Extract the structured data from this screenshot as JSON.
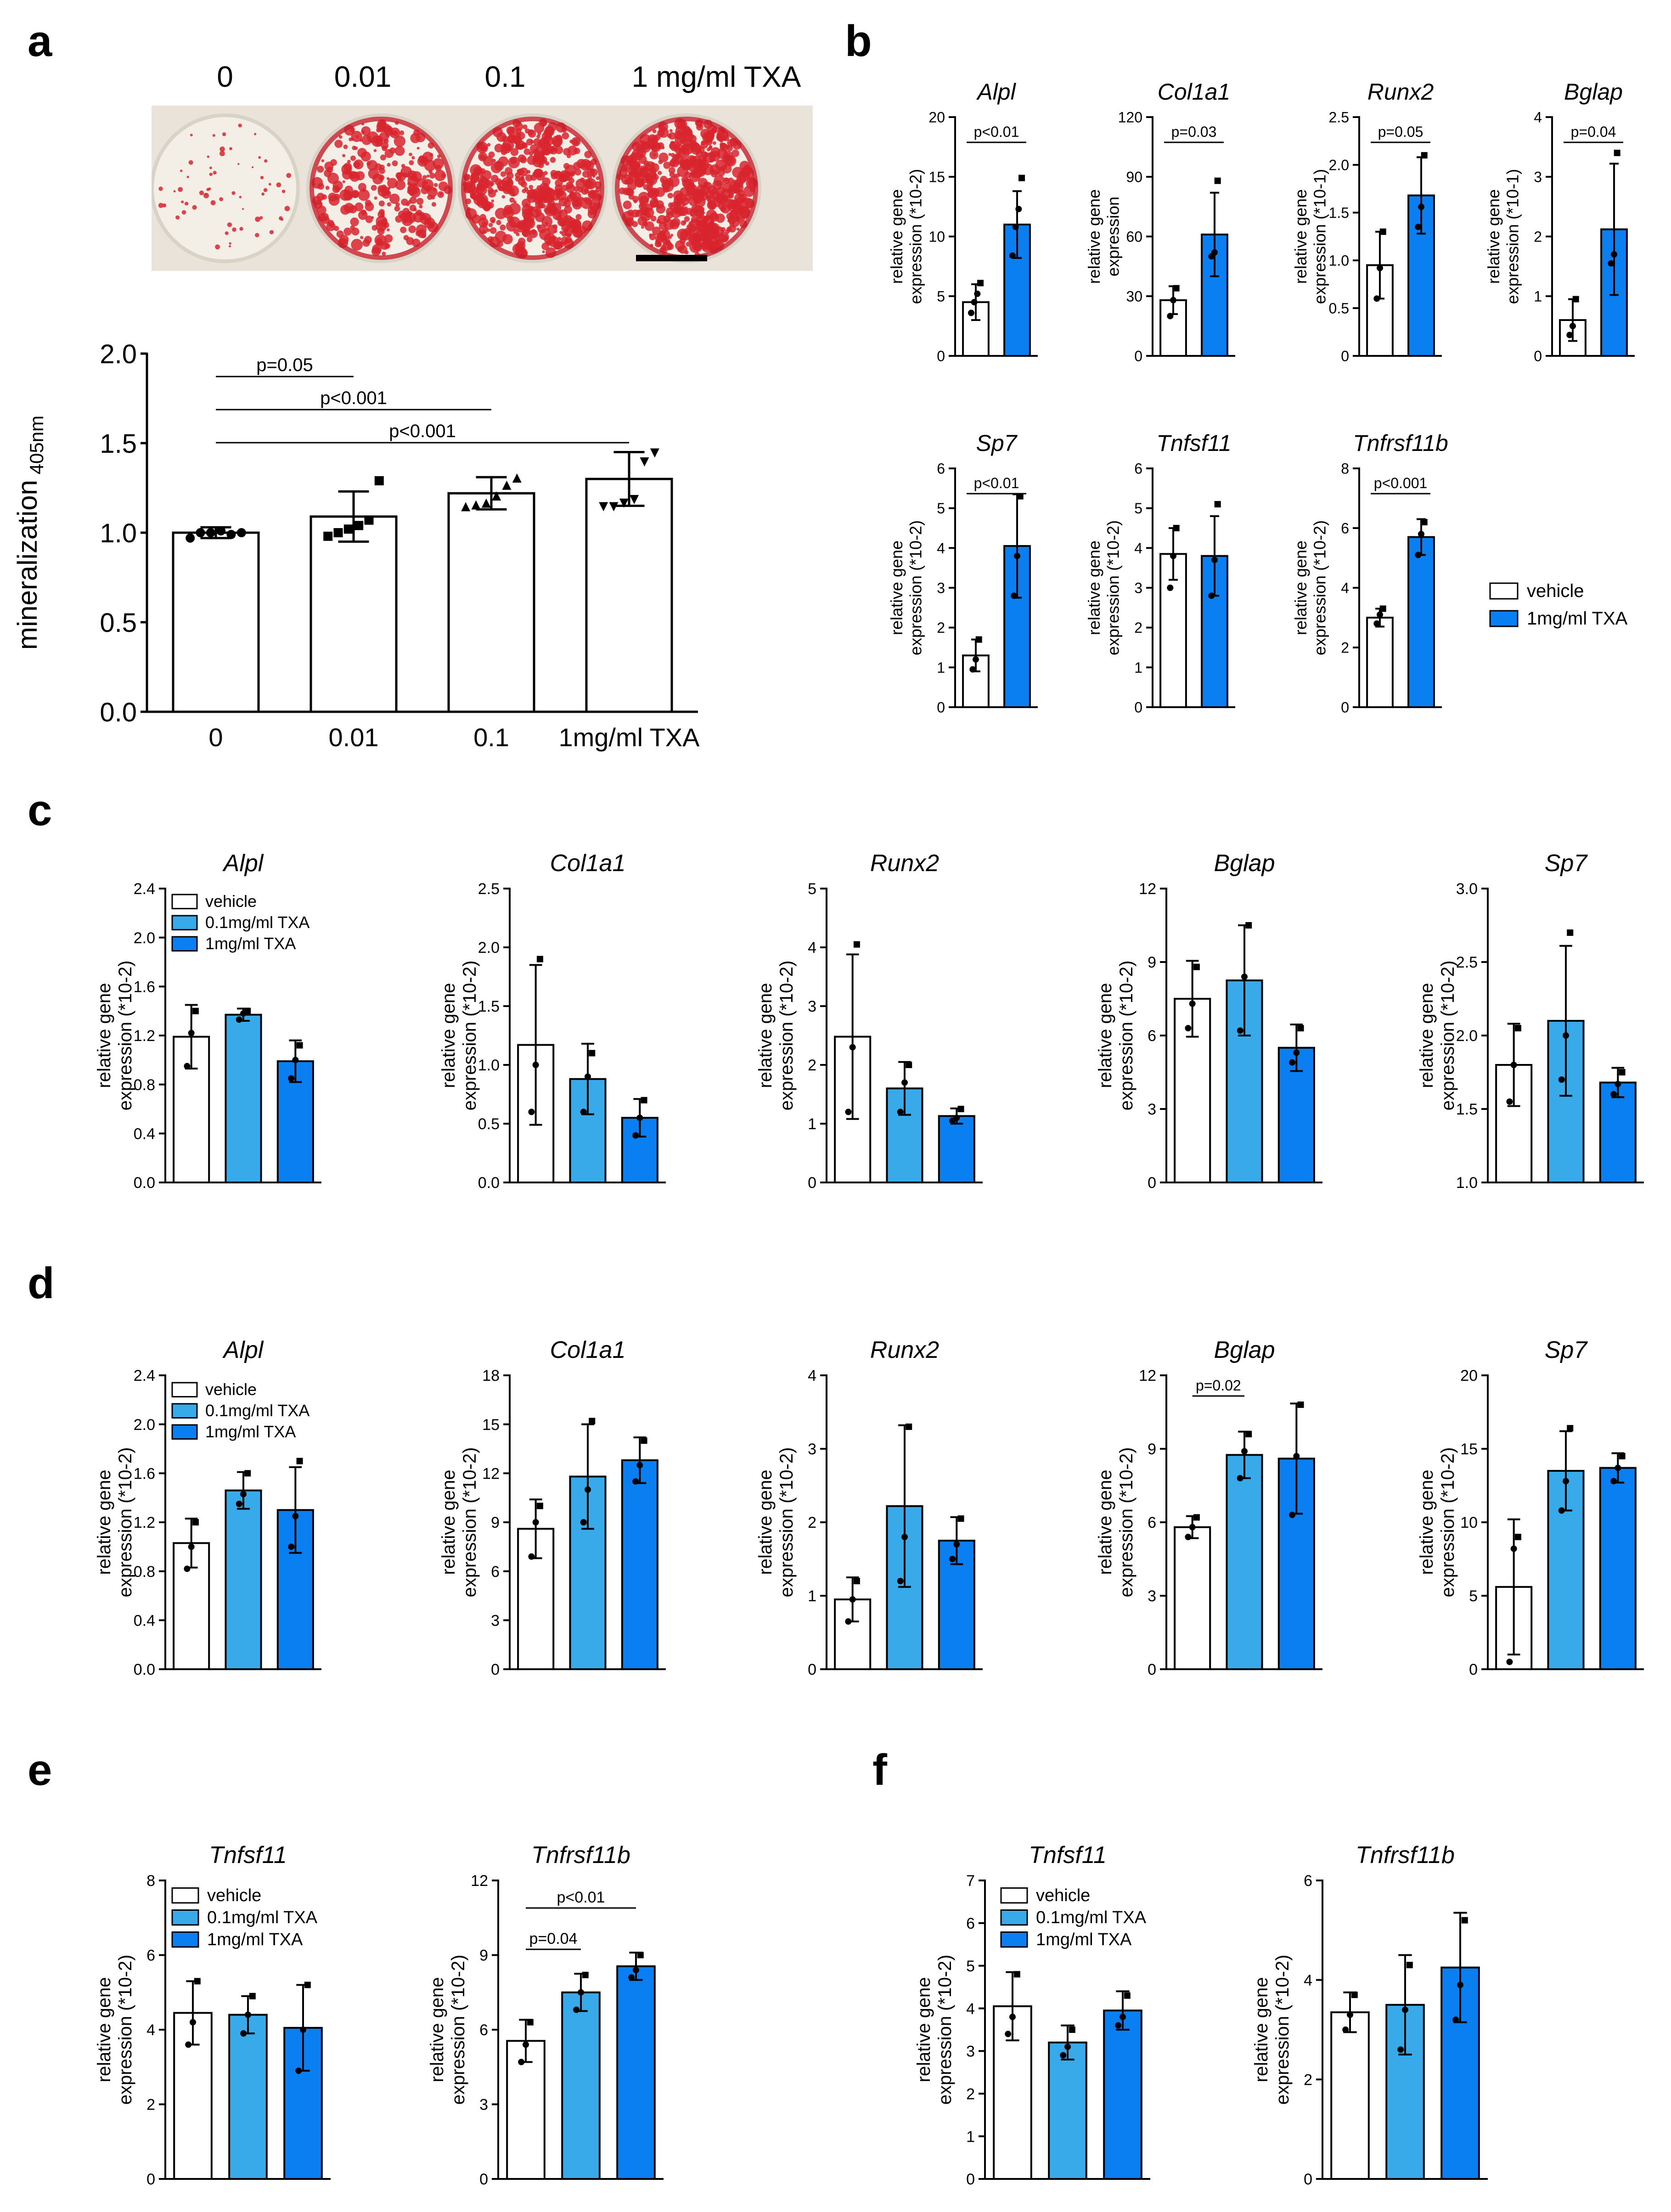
{
  "colors": {
    "vehicle": "#ffffff",
    "tx01": "#38aaea",
    "tx1": "#0a7ff2",
    "axis": "#000000",
    "stain": "#d8242e",
    "plate": "#f4efe6"
  },
  "panels": {
    "a": {
      "letter": "a",
      "photo_labels": [
        "0",
        "0.01",
        "0.1",
        "1 mg/ml TXA"
      ],
      "photo_desc": "Alizarin red stained wells"
    },
    "b": {
      "letter": "b"
    },
    "c": {
      "letter": "c"
    },
    "d": {
      "letter": "d"
    },
    "e": {
      "letter": "e"
    },
    "f": {
      "letter": "f"
    }
  },
  "legends": {
    "two": [
      "vehicle",
      "1mg/ml TXA"
    ],
    "three": [
      "vehicle",
      "0.1mg/ml TXA",
      "1mg/ml TXA"
    ]
  },
  "chart_data": [
    {
      "id": "a-mineral",
      "type": "bar",
      "title": "",
      "ylabel": "mineralization",
      "ylabel_sub": "405nm",
      "categories": [
        "0",
        "0.01",
        "0.1",
        "1mg/ml TXA"
      ],
      "values": [
        1.0,
        1.09,
        1.22,
        1.3
      ],
      "errors": [
        0.03,
        0.14,
        0.09,
        0.15
      ],
      "yticks": [
        "0.0",
        "0.5",
        "1.0",
        "1.5",
        "2.0"
      ],
      "ylim": [
        0,
        2.0
      ],
      "colors": [
        "vehicle",
        "vehicle",
        "vehicle",
        "vehicle"
      ],
      "marker": "mixed",
      "points": [
        [
          0.97,
          1.0,
          1.0,
          1.01,
          0.99,
          1.0
        ],
        [
          0.98,
          1.0,
          1.02,
          1.04,
          1.07,
          1.29
        ],
        [
          1.14,
          1.15,
          1.16,
          1.2,
          1.26,
          1.3
        ],
        [
          1.15,
          1.15,
          1.17,
          1.19,
          1.4,
          1.45
        ]
      ],
      "sig": [
        [
          "p=0.05",
          0,
          1
        ],
        [
          "p<0.001",
          0,
          2
        ],
        [
          "p<0.001",
          0,
          3
        ]
      ]
    },
    {
      "id": "b-Alpl",
      "type": "bar",
      "title": "Alpl",
      "ylabel": [
        "relative gene",
        "expression (*10-2)"
      ],
      "yticks": [
        "0",
        "5",
        "10",
        "15",
        "20"
      ],
      "ylim": [
        0,
        20
      ],
      "categories": [
        "vehicle",
        "1mg/ml TXA"
      ],
      "values": [
        4.5,
        11.0
      ],
      "errors": [
        1.5,
        2.8
      ],
      "colors": [
        "vehicle",
        "tx1"
      ],
      "points": [
        [
          3.6,
          4.5,
          5.2,
          6.1
        ],
        [
          8.4,
          10.8,
          12.3,
          14.9
        ]
      ],
      "sig": [
        [
          "p<0.01",
          0,
          1
        ]
      ]
    },
    {
      "id": "b-Col1a1",
      "type": "bar",
      "title": "Col1a1",
      "ylabel": [
        "relative gene",
        "expression"
      ],
      "yticks": [
        "0",
        "30",
        "60",
        "90",
        "120"
      ],
      "ylim": [
        0,
        120
      ],
      "categories": [
        "vehicle",
        "1mg/ml TXA"
      ],
      "values": [
        28,
        61
      ],
      "errors": [
        7,
        21
      ],
      "colors": [
        "vehicle",
        "tx1"
      ],
      "points": [
        [
          20,
          28,
          34
        ],
        [
          50,
          52,
          88
        ]
      ],
      "sig": [
        [
          "p=0.03",
          0,
          1
        ]
      ]
    },
    {
      "id": "b-Runx2",
      "type": "bar",
      "title": "Runx2",
      "ylabel": [
        "relative gene",
        "expression (*10-1)"
      ],
      "yticks": [
        "0",
        "0.5",
        "1.0",
        "1.5",
        "2.0",
        "2.5"
      ],
      "ylim": [
        0,
        2.5
      ],
      "categories": [
        "vehicle",
        "1mg/ml TXA"
      ],
      "values": [
        0.95,
        1.68
      ],
      "errors": [
        0.35,
        0.4
      ],
      "colors": [
        "vehicle",
        "tx1"
      ],
      "points": [
        [
          0.6,
          0.92,
          1.3
        ],
        [
          1.35,
          1.56,
          2.1
        ]
      ],
      "sig": [
        [
          "p=0.05",
          0,
          1
        ]
      ]
    },
    {
      "id": "b-Bglap",
      "type": "bar",
      "title": "Bglap",
      "ylabel": [
        "relative gene",
        "expression (*10-1)"
      ],
      "yticks": [
        "0",
        "1",
        "2",
        "3",
        "4"
      ],
      "ylim": [
        0,
        4
      ],
      "categories": [
        "vehicle",
        "1mg/ml TXA"
      ],
      "values": [
        0.6,
        2.12
      ],
      "errors": [
        0.35,
        1.1
      ],
      "colors": [
        "vehicle",
        "tx1"
      ],
      "points": [
        [
          0.35,
          0.5,
          0.95
        ],
        [
          1.55,
          1.7,
          3.4
        ]
      ],
      "sig": [
        [
          "p=0.04",
          0,
          1
        ]
      ]
    },
    {
      "id": "b-Sp7",
      "type": "bar",
      "title": "Sp7",
      "ylabel": [
        "relative gene",
        "expression (*10-2)"
      ],
      "yticks": [
        "0",
        "1",
        "2",
        "3",
        "4",
        "5",
        "6"
      ],
      "ylim": [
        0,
        6
      ],
      "categories": [
        "vehicle",
        "1mg/ml TXA"
      ],
      "values": [
        1.3,
        4.05
      ],
      "errors": [
        0.4,
        1.3
      ],
      "colors": [
        "vehicle",
        "tx1"
      ],
      "points": [
        [
          0.95,
          1.2,
          1.7
        ],
        [
          2.8,
          3.8,
          5.3
        ]
      ],
      "sig": [
        [
          "p<0.01",
          0,
          1
        ]
      ]
    },
    {
      "id": "b-Tnfsf11",
      "type": "bar",
      "title": "Tnfsf11",
      "ylabel": [
        "relative gene",
        "expression (*10-2)"
      ],
      "yticks": [
        "0",
        "1",
        "2",
        "3",
        "4",
        "5",
        "6"
      ],
      "ylim": [
        0,
        6
      ],
      "categories": [
        "vehicle",
        "1mg/ml TXA"
      ],
      "values": [
        3.85,
        3.8
      ],
      "errors": [
        0.65,
        1.0
      ],
      "colors": [
        "vehicle",
        "tx1"
      ],
      "points": [
        [
          3.0,
          3.8,
          4.5
        ],
        [
          2.8,
          3.7,
          5.1
        ]
      ],
      "sig": []
    },
    {
      "id": "b-Tnfrsf11b",
      "type": "bar",
      "title": "Tnfrsf11b",
      "ylabel": [
        "relative gene",
        "expression (*10-2)"
      ],
      "yticks": [
        "0",
        "2",
        "4",
        "6",
        "8"
      ],
      "ylim": [
        0,
        8
      ],
      "categories": [
        "vehicle",
        "1mg/ml TXA"
      ],
      "values": [
        3.0,
        5.7
      ],
      "errors": [
        0.3,
        0.6
      ],
      "colors": [
        "vehicle",
        "tx1"
      ],
      "points": [
        [
          2.8,
          3.1,
          3.3
        ],
        [
          5.1,
          5.8,
          6.2
        ]
      ],
      "sig": [
        [
          "p<0.001",
          0,
          1
        ]
      ]
    },
    {
      "id": "c-Alpl",
      "type": "bar",
      "title": "Alpl",
      "ylabel": [
        "relative gene",
        "expression (*10-2)"
      ],
      "yticks": [
        "0.0",
        "0.4",
        "0.8",
        "1.2",
        "1.6",
        "2.0",
        "2.4"
      ],
      "ylim": [
        0,
        2.4
      ],
      "categories": [
        "vehicle",
        "0.1mg/ml TXA",
        "1mg/ml TXA"
      ],
      "values": [
        1.19,
        1.37,
        0.99
      ],
      "errors": [
        0.26,
        0.05,
        0.17
      ],
      "colors": [
        "vehicle",
        "tx01",
        "tx1"
      ],
      "points": [
        [
          0.95,
          1.22,
          1.4
        ],
        [
          1.33,
          1.38,
          1.4
        ],
        [
          0.85,
          1.0,
          1.12
        ]
      ],
      "sig": [],
      "legend": "three"
    },
    {
      "id": "c-Col1a1",
      "type": "bar",
      "title": "Col1a1",
      "ylabel": [
        "relative gene",
        "expression (*10-2)"
      ],
      "yticks": [
        "0.0",
        "0.5",
        "1.0",
        "1.5",
        "2.0",
        "2.5"
      ],
      "ylim": [
        0,
        2.5
      ],
      "categories": [
        "vehicle",
        "0.1mg/ml TXA",
        "1mg/ml TXA"
      ],
      "values": [
        1.17,
        0.88,
        0.55
      ],
      "errors": [
        0.68,
        0.3,
        0.16
      ],
      "colors": [
        "vehicle",
        "tx01",
        "tx1"
      ],
      "points": [
        [
          0.6,
          1.0,
          1.9
        ],
        [
          0.6,
          0.9,
          1.1
        ],
        [
          0.4,
          0.55,
          0.7
        ]
      ],
      "sig": []
    },
    {
      "id": "c-Runx2",
      "type": "bar",
      "title": "Runx2",
      "ylabel": [
        "relative gene",
        "expression (*10-2)"
      ],
      "yticks": [
        "0",
        "1",
        "2",
        "3",
        "4",
        "5"
      ],
      "ylim": [
        0,
        5
      ],
      "categories": [
        "vehicle",
        "0.1mg/ml TXA",
        "1mg/ml TXA"
      ],
      "values": [
        2.48,
        1.6,
        1.13
      ],
      "errors": [
        1.4,
        0.45,
        0.13
      ],
      "colors": [
        "vehicle",
        "tx01",
        "tx1"
      ],
      "points": [
        [
          1.2,
          2.3,
          4.05
        ],
        [
          1.2,
          1.7,
          2.0
        ],
        [
          1.05,
          1.1,
          1.25
        ]
      ],
      "sig": []
    },
    {
      "id": "c-Bglap",
      "type": "bar",
      "title": "Bglap",
      "ylabel": [
        "relative gene",
        "expression (*10-2)"
      ],
      "yticks": [
        "0",
        "3",
        "6",
        "9",
        "12"
      ],
      "ylim": [
        0,
        12
      ],
      "categories": [
        "vehicle",
        "0.1mg/ml TXA",
        "1mg/ml TXA"
      ],
      "values": [
        7.5,
        8.25,
        5.5
      ],
      "errors": [
        1.55,
        2.25,
        0.95
      ],
      "colors": [
        "vehicle",
        "tx01",
        "tx1"
      ],
      "points": [
        [
          6.3,
          7.3,
          8.8
        ],
        [
          6.2,
          8.4,
          10.5
        ],
        [
          4.9,
          5.3,
          6.3
        ]
      ],
      "sig": []
    },
    {
      "id": "c-Sp7",
      "type": "bar",
      "title": "Sp7",
      "ylabel": [
        "relative gene",
        "expression (*10-2)"
      ],
      "yticks": [
        "1.0",
        "1.5",
        "2.0",
        "2.5",
        "3.0"
      ],
      "ylim": [
        1.0,
        3.0
      ],
      "categories": [
        "vehicle",
        "0.1mg/ml TXA",
        "1mg/ml TXA"
      ],
      "values": [
        1.8,
        2.1,
        1.68
      ],
      "errors": [
        0.28,
        0.51,
        0.1
      ],
      "colors": [
        "vehicle",
        "tx01",
        "tx1"
      ],
      "points": [
        [
          1.55,
          1.8,
          2.05
        ],
        [
          1.7,
          2.0,
          2.7
        ],
        [
          1.6,
          1.67,
          1.75
        ]
      ],
      "sig": []
    },
    {
      "id": "d-Alpl",
      "type": "bar",
      "title": "Alpl",
      "ylabel": [
        "relative gene",
        "expression (*10-2)"
      ],
      "yticks": [
        "0.0",
        "0.4",
        "0.8",
        "1.2",
        "1.6",
        "2.0",
        "2.4"
      ],
      "ylim": [
        0,
        2.4
      ],
      "categories": [
        "vehicle",
        "0.1mg/ml TXA",
        "1mg/ml TXA"
      ],
      "values": [
        1.03,
        1.46,
        1.3
      ],
      "errors": [
        0.2,
        0.15,
        0.35
      ],
      "colors": [
        "vehicle",
        "tx01",
        "tx1"
      ],
      "points": [
        [
          0.82,
          1.0,
          1.2
        ],
        [
          1.35,
          1.43,
          1.6
        ],
        [
          1.0,
          1.25,
          1.7
        ]
      ],
      "sig": [],
      "legend": "three"
    },
    {
      "id": "d-Col1a1",
      "type": "bar",
      "title": "Col1a1",
      "ylabel": [
        "relative gene",
        "expression (*10-2)"
      ],
      "yticks": [
        "0",
        "3",
        "6",
        "9",
        "12",
        "15",
        "18"
      ],
      "ylim": [
        0,
        18
      ],
      "categories": [
        "vehicle",
        "0.1mg/ml TXA",
        "1mg/ml TXA"
      ],
      "values": [
        8.6,
        11.8,
        12.8
      ],
      "errors": [
        1.8,
        3.2,
        1.4
      ],
      "colors": [
        "vehicle",
        "tx01",
        "tx1"
      ],
      "points": [
        [
          6.9,
          9.0,
          10.0
        ],
        [
          9.0,
          11.0,
          15.2
        ],
        [
          11.5,
          12.5,
          14.0
        ]
      ],
      "sig": []
    },
    {
      "id": "d-Runx2",
      "type": "bar",
      "title": "Runx2",
      "ylabel": [
        "relative gene",
        "expression (*10-2)"
      ],
      "yticks": [
        "0",
        "1",
        "2",
        "3",
        "4"
      ],
      "ylim": [
        0,
        4
      ],
      "categories": [
        "vehicle",
        "0.1mg/ml TXA",
        "1mg/ml TXA"
      ],
      "values": [
        0.95,
        2.22,
        1.75
      ],
      "errors": [
        0.3,
        1.1,
        0.32
      ],
      "colors": [
        "vehicle",
        "tx01",
        "tx1"
      ],
      "points": [
        [
          0.65,
          0.95,
          1.2
        ],
        [
          1.2,
          1.8,
          3.3
        ],
        [
          1.5,
          1.7,
          2.05
        ]
      ],
      "sig": []
    },
    {
      "id": "d-Bglap",
      "type": "bar",
      "title": "Bglap",
      "ylabel": [
        "relative gene",
        "expression (*10-2)"
      ],
      "yticks": [
        "0",
        "3",
        "6",
        "9",
        "12"
      ],
      "ylim": [
        0,
        12
      ],
      "categories": [
        "vehicle",
        "0.1mg/ml TXA",
        "1mg/ml TXA"
      ],
      "values": [
        5.8,
        8.75,
        8.6
      ],
      "errors": [
        0.45,
        0.95,
        2.25
      ],
      "colors": [
        "vehicle",
        "tx01",
        "tx1"
      ],
      "points": [
        [
          5.4,
          5.8,
          6.2
        ],
        [
          7.8,
          8.9,
          9.6
        ],
        [
          6.3,
          8.7,
          10.8
        ]
      ],
      "sig": [
        [
          "p=0.02",
          0,
          1
        ]
      ]
    },
    {
      "id": "d-Sp7",
      "type": "bar",
      "title": "Sp7",
      "ylabel": [
        "relative gene",
        "expression (*10-2)"
      ],
      "yticks": [
        "0",
        "5",
        "10",
        "15",
        "20"
      ],
      "ylim": [
        0,
        20
      ],
      "categories": [
        "vehicle",
        "0.1mg/ml TXA",
        "1mg/ml TXA"
      ],
      "values": [
        5.6,
        13.5,
        13.7
      ],
      "errors": [
        4.6,
        2.7,
        1.0
      ],
      "colors": [
        "vehicle",
        "tx01",
        "tx1"
      ],
      "points": [
        [
          0.5,
          8.2,
          9.0
        ],
        [
          10.8,
          12.8,
          16.4
        ],
        [
          12.8,
          13.7,
          14.5
        ]
      ],
      "sig": []
    },
    {
      "id": "e-Tnfsf11",
      "type": "bar",
      "title": "Tnfsf11",
      "ylabel": [
        "relative gene",
        "expression (*10-2)"
      ],
      "yticks": [
        "0",
        "2",
        "4",
        "6",
        "8"
      ],
      "ylim": [
        0,
        8
      ],
      "categories": [
        "vehicle",
        "0.1mg/ml TXA",
        "1mg/ml TXA"
      ],
      "values": [
        4.45,
        4.4,
        4.05
      ],
      "errors": [
        0.85,
        0.5,
        1.15
      ],
      "colors": [
        "vehicle",
        "tx01",
        "tx1"
      ],
      "points": [
        [
          3.6,
          4.2,
          5.3
        ],
        [
          3.9,
          4.4,
          4.9
        ],
        [
          2.9,
          4.0,
          5.2
        ]
      ],
      "sig": [],
      "legend": "three"
    },
    {
      "id": "e-Tnfrsf11b",
      "type": "bar",
      "title": "Tnfrsf11b",
      "ylabel": [
        "relative gene",
        "expression (*10-2)"
      ],
      "yticks": [
        "0",
        "3",
        "6",
        "9",
        "12"
      ],
      "ylim": [
        0,
        12
      ],
      "categories": [
        "vehicle",
        "0.1mg/ml TXA",
        "1mg/ml TXA"
      ],
      "values": [
        5.55,
        7.5,
        8.55
      ],
      "errors": [
        0.85,
        0.75,
        0.55
      ],
      "colors": [
        "vehicle",
        "tx01",
        "tx1"
      ],
      "points": [
        [
          4.7,
          5.4,
          6.3
        ],
        [
          6.8,
          7.5,
          8.2
        ],
        [
          8.1,
          8.4,
          9.0
        ]
      ],
      "sig": [
        [
          "p=0.04",
          0,
          1
        ],
        [
          "p<0.01",
          0,
          2
        ]
      ]
    },
    {
      "id": "f-Tnfsf11",
      "type": "bar",
      "title": "Tnfsf11",
      "ylabel": [
        "relative gene",
        "expression (*10-2)"
      ],
      "yticks": [
        "0",
        "1",
        "2",
        "3",
        "4",
        "5",
        "6",
        "7"
      ],
      "ylim": [
        0,
        7
      ],
      "categories": [
        "vehicle",
        "0.1mg/ml TXA",
        "1mg/ml TXA"
      ],
      "values": [
        4.05,
        3.2,
        3.95
      ],
      "errors": [
        0.8,
        0.4,
        0.45
      ],
      "colors": [
        "vehicle",
        "tx01",
        "tx1"
      ],
      "points": [
        [
          3.4,
          3.8,
          4.8
        ],
        [
          2.9,
          3.1,
          3.5
        ],
        [
          3.6,
          3.8,
          4.3
        ]
      ],
      "sig": [],
      "legend": "three"
    },
    {
      "id": "f-Tnfrsf11b",
      "type": "bar",
      "title": "Tnfrsf11b",
      "ylabel": [
        "relative gene",
        "expression (*10-2)"
      ],
      "yticks": [
        "0",
        "2",
        "4",
        "6"
      ],
      "ylim": [
        0,
        6
      ],
      "categories": [
        "vehicle",
        "0.1mg/ml TXA",
        "1mg/ml TXA"
      ],
      "values": [
        3.35,
        3.5,
        4.25
      ],
      "errors": [
        0.4,
        1.0,
        1.1
      ],
      "colors": [
        "vehicle",
        "tx01",
        "tx1"
      ],
      "points": [
        [
          3.0,
          3.3,
          3.7
        ],
        [
          2.6,
          3.4,
          4.3
        ],
        [
          3.2,
          3.9,
          5.2
        ]
      ],
      "sig": []
    }
  ]
}
